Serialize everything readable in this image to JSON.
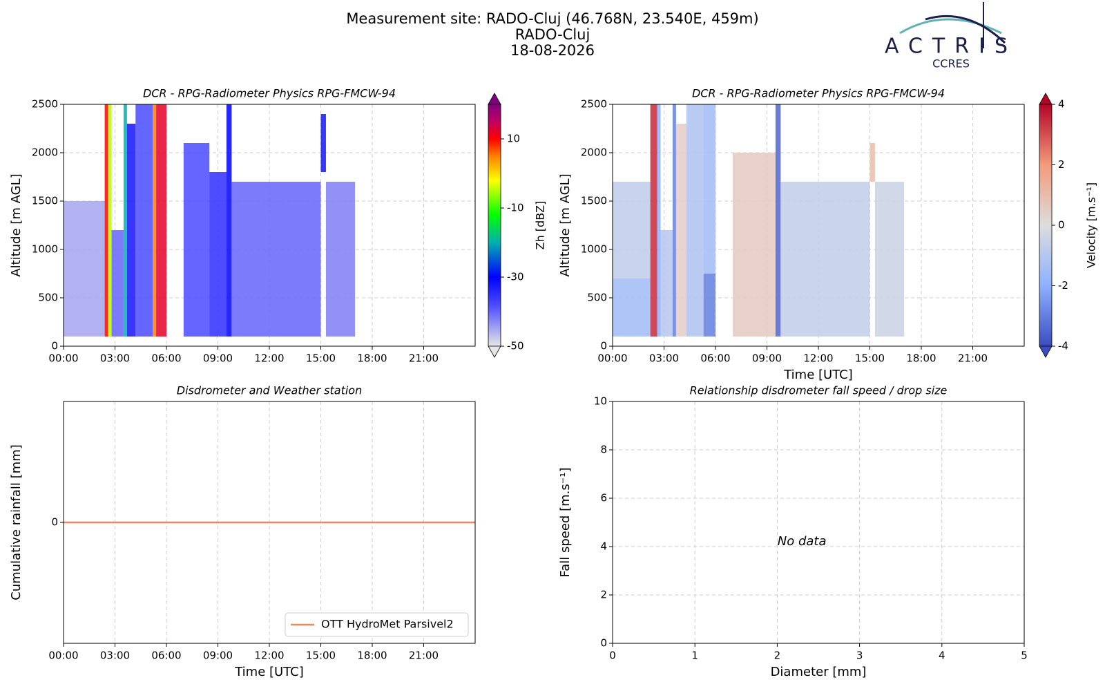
{
  "header": {
    "lines": [
      "Measurement site: RADO-Cluj (46.768N, 23.540E, 459m)",
      "RADO-Cluj",
      "18-08-2026"
    ]
  },
  "logo": {
    "name": "ACTRIS",
    "sub": "CCRES"
  },
  "chart_data": [
    {
      "type": "heatmap",
      "title": "DCR - RPG-Radiometer Physics RPG-FMCW-94",
      "ylabel": "Altitude [m AGL]",
      "xlim": [
        0,
        24
      ],
      "xticks": [
        {
          "value": 0,
          "label": "00:00"
        },
        {
          "value": 3,
          "label": "03:00"
        },
        {
          "value": 6,
          "label": "06:00"
        },
        {
          "value": 9,
          "label": "09:00"
        },
        {
          "value": 12,
          "label": "12:00"
        },
        {
          "value": 15,
          "label": "15:00"
        },
        {
          "value": 18,
          "label": "18:00"
        },
        {
          "value": 21,
          "label": "21:00"
        }
      ],
      "ylim": [
        0,
        2500
      ],
      "yticks": [
        0,
        500,
        1000,
        1500,
        2000,
        2500
      ],
      "grid": true,
      "colorbar": {
        "label": "Zh [dBZ]",
        "clim": [
          -50,
          20
        ],
        "ticks": [
          -50,
          -30,
          -10,
          10
        ]
      },
      "colorscale": [
        {
          "value": -50,
          "color": "#e6e6e6"
        },
        {
          "value": -38,
          "color": "#4a4aff"
        },
        {
          "value": -30,
          "color": "#0000ff"
        },
        {
          "value": -20,
          "color": "#00b0b0"
        },
        {
          "value": -12,
          "color": "#00ff00"
        },
        {
          "value": -2,
          "color": "#ffff00"
        },
        {
          "value": 5,
          "color": "#ff8000"
        },
        {
          "value": 10,
          "color": "#ff0000"
        },
        {
          "value": 15,
          "color": "#c00060"
        },
        {
          "value": 20,
          "color": "#800080"
        }
      ],
      "cells": [
        {
          "t": [
            0.0,
            2.4
          ],
          "z": [
            100,
            1500
          ],
          "v": -45
        },
        {
          "t": [
            2.4,
            2.6
          ],
          "z": [
            100,
            2500
          ],
          "v": 10
        },
        {
          "t": [
            2.6,
            2.8
          ],
          "z": [
            100,
            2500
          ],
          "v": -5
        },
        {
          "t": [
            2.8,
            3.5
          ],
          "z": [
            100,
            1200
          ],
          "v": -40
        },
        {
          "t": [
            3.5,
            3.7
          ],
          "z": [
            100,
            2500
          ],
          "v": -20
        },
        {
          "t": [
            3.7,
            4.2
          ],
          "z": [
            100,
            2300
          ],
          "v": -32
        },
        {
          "t": [
            4.2,
            5.2
          ],
          "z": [
            100,
            2500
          ],
          "v": -38
        },
        {
          "t": [
            5.2,
            5.4
          ],
          "z": [
            100,
            2500
          ],
          "v": 5
        },
        {
          "t": [
            5.4,
            6.0
          ],
          "z": [
            100,
            2500
          ],
          "v": 12
        },
        {
          "t": [
            7.0,
            8.5
          ],
          "z": [
            100,
            2100
          ],
          "v": -38
        },
        {
          "t": [
            8.5,
            9.5
          ],
          "z": [
            100,
            1800
          ],
          "v": -35
        },
        {
          "t": [
            9.5,
            9.8
          ],
          "z": [
            100,
            2500
          ],
          "v": -30
        },
        {
          "t": [
            9.8,
            15.0
          ],
          "z": [
            100,
            1700
          ],
          "v": -40
        },
        {
          "t": [
            15.0,
            15.3
          ],
          "z": [
            1800,
            2400
          ],
          "v": -32
        },
        {
          "t": [
            15.3,
            17.0
          ],
          "z": [
            100,
            1700
          ],
          "v": -42
        }
      ]
    },
    {
      "type": "heatmap",
      "title": "DCR - RPG-Radiometer Physics RPG-FMCW-94",
      "ylabel": "Altitude [m AGL]",
      "xlabel": "Time [UTC]",
      "xlim": [
        0,
        24
      ],
      "xticks": [
        {
          "value": 0,
          "label": "00:00"
        },
        {
          "value": 3,
          "label": "03:00"
        },
        {
          "value": 6,
          "label": "06:00"
        },
        {
          "value": 9,
          "label": "09:00"
        },
        {
          "value": 12,
          "label": "12:00"
        },
        {
          "value": 15,
          "label": "15:00"
        },
        {
          "value": 18,
          "label": "18:00"
        },
        {
          "value": 21,
          "label": "21:00"
        }
      ],
      "ylim": [
        0,
        2500
      ],
      "yticks": [
        0,
        500,
        1000,
        1500,
        2000,
        2500
      ],
      "grid": true,
      "colorbar": {
        "label": "Velocity [m.s⁻¹]",
        "clim": [
          -4,
          4
        ],
        "ticks": [
          -4,
          -2,
          0,
          2,
          4
        ]
      },
      "colorscale": [
        {
          "value": -4,
          "color": "#3b4cc0"
        },
        {
          "value": -2,
          "color": "#8db0fe"
        },
        {
          "value": 0,
          "color": "#dddddd"
        },
        {
          "value": 2,
          "color": "#f49a7b"
        },
        {
          "value": 4,
          "color": "#b40426"
        }
      ],
      "cells": [
        {
          "t": [
            0.0,
            2.2
          ],
          "z": [
            100,
            700
          ],
          "v": -1.5
        },
        {
          "t": [
            0.0,
            2.2
          ],
          "z": [
            700,
            1700
          ],
          "v": -0.8
        },
        {
          "t": [
            2.2,
            2.6
          ],
          "z": [
            100,
            2500
          ],
          "v": 3.5
        },
        {
          "t": [
            2.6,
            2.8
          ],
          "z": [
            100,
            2500
          ],
          "v": -2
        },
        {
          "t": [
            2.8,
            3.5
          ],
          "z": [
            100,
            1200
          ],
          "v": -1
        },
        {
          "t": [
            3.5,
            3.7
          ],
          "z": [
            100,
            2500
          ],
          "v": -3
        },
        {
          "t": [
            3.7,
            4.3
          ],
          "z": [
            100,
            2300
          ],
          "v": 0.5
        },
        {
          "t": [
            4.3,
            5.3
          ],
          "z": [
            100,
            2500
          ],
          "v": -1.2
        },
        {
          "t": [
            5.3,
            6.0
          ],
          "z": [
            100,
            750
          ],
          "v": -3
        },
        {
          "t": [
            5.3,
            6.0
          ],
          "z": [
            750,
            2500
          ],
          "v": -1.5
        },
        {
          "t": [
            7.0,
            9.5
          ],
          "z": [
            100,
            2000
          ],
          "v": 0.6
        },
        {
          "t": [
            9.5,
            9.8
          ],
          "z": [
            100,
            2500
          ],
          "v": -3.5
        },
        {
          "t": [
            9.8,
            15.0
          ],
          "z": [
            100,
            1700
          ],
          "v": -0.7
        },
        {
          "t": [
            15.0,
            15.3
          ],
          "z": [
            1700,
            2100
          ],
          "v": 1
        },
        {
          "t": [
            15.3,
            17.0
          ],
          "z": [
            100,
            1700
          ],
          "v": -0.5
        }
      ]
    },
    {
      "type": "line",
      "title": "Disdrometer and Weather station",
      "ylabel": "Cumulative rainfall [mm]",
      "xlabel": "Time [UTC]",
      "xlim": [
        0,
        24
      ],
      "xticks": [
        {
          "value": 0,
          "label": "00:00"
        },
        {
          "value": 3,
          "label": "03:00"
        },
        {
          "value": 6,
          "label": "06:00"
        },
        {
          "value": 9,
          "label": "09:00"
        },
        {
          "value": 12,
          "label": "12:00"
        },
        {
          "value": 15,
          "label": "15:00"
        },
        {
          "value": 18,
          "label": "18:00"
        },
        {
          "value": 21,
          "label": "21:00"
        }
      ],
      "ylim": [
        -0.055,
        0.055
      ],
      "yticks": [
        0
      ],
      "grid": true,
      "legend": "lower right",
      "x": [
        0,
        24
      ],
      "series": [
        {
          "name": "OTT HydroMet Parsivel2",
          "color": "#f0885c",
          "values": [
            0,
            0
          ]
        }
      ]
    },
    {
      "type": "scatter",
      "title": "Relationship disdrometer fall speed / drop size",
      "ylabel": "Fall speed [m.s⁻¹]",
      "xlabel": "Diameter [mm]",
      "xlim": [
        0,
        5
      ],
      "xticks": [
        0,
        1,
        2,
        3,
        4,
        5
      ],
      "ylim": [
        0,
        10
      ],
      "yticks": [
        0,
        2,
        4,
        6,
        8,
        10
      ],
      "grid": true,
      "annotation": "No data",
      "series": []
    }
  ]
}
